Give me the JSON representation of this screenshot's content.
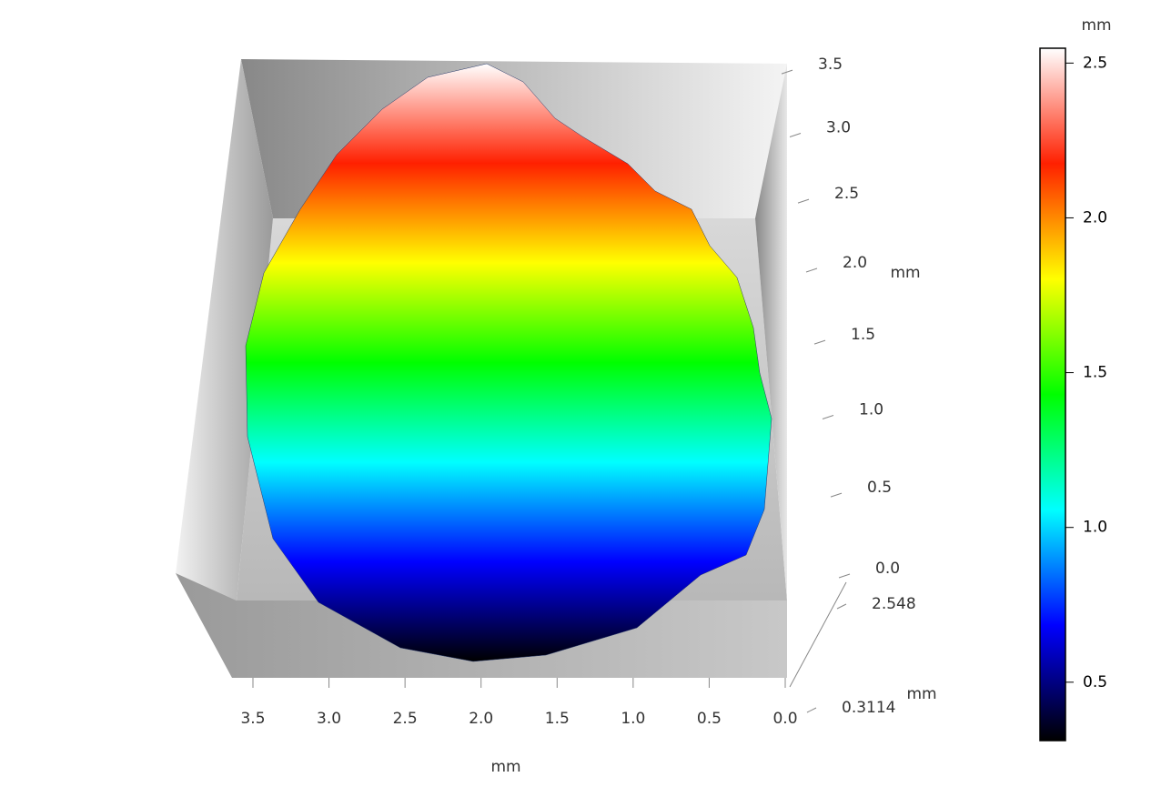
{
  "chart_data": {
    "type": "surface",
    "x_label": "mm",
    "y_label": "mm",
    "z_label": "mm",
    "colorbar_label": "mm",
    "xlim": [
      0,
      3.5
    ],
    "xticks": [
      {
        "value": 3.5,
        "label": "3.5"
      },
      {
        "value": 3,
        "label": "3.0"
      },
      2.5,
      {
        "value": 2,
        "label": "2.0"
      },
      1.5,
      {
        "value": 1,
        "label": "1.0"
      },
      0.5,
      {
        "value": 0,
        "label": "0.0"
      }
    ],
    "ylim": [
      0,
      3.5
    ],
    "yticks": [
      {
        "value": 0,
        "label": "0.0"
      },
      0.5,
      {
        "value": 1,
        "label": "1.0"
      },
      1.5,
      {
        "value": 2,
        "label": "2.0"
      },
      2.5,
      {
        "value": 3,
        "label": "3.0"
      },
      3.5
    ],
    "zlim": [
      0.3114,
      2.548
    ],
    "zticks": [
      2.548,
      0.3114
    ],
    "colorbar_lim": [
      0.3114,
      2.548
    ],
    "colorbar_ticks": [
      0.5,
      {
        "value": 1,
        "label": "1.0"
      },
      1.5,
      {
        "value": 2,
        "label": "2.0"
      },
      2.5
    ],
    "colormap": [
      "#000000",
      "#0000ff",
      "#00ffff",
      "#00ff00",
      "#ffff00",
      "#ff2000",
      "#ffffff"
    ]
  }
}
